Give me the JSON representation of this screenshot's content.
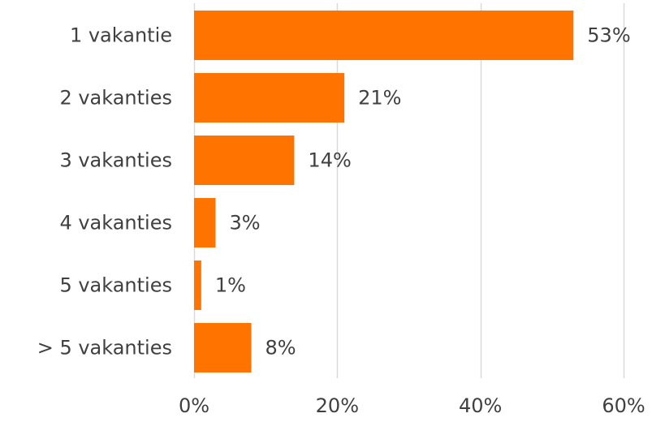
{
  "chart_data": {
    "type": "bar",
    "orientation": "horizontal",
    "categories": [
      "1 vakantie",
      "2 vakanties",
      "3 vakanties",
      "4 vakanties",
      "5 vakanties",
      "> 5 vakanties"
    ],
    "values": [
      53,
      21,
      14,
      3,
      1,
      8
    ],
    "value_labels": [
      "53%",
      "21%",
      "14%",
      "3%",
      "1%",
      "8%"
    ],
    "xlim": [
      0,
      60
    ],
    "xticks": [
      0,
      20,
      40,
      60
    ],
    "xtick_labels": [
      "0%",
      "20%",
      "40%",
      "60%"
    ],
    "grid": "vertical",
    "legend": "none",
    "bar_color": "#FF7300",
    "grid_color": "#D9D9D9",
    "text_color": "#404040"
  }
}
